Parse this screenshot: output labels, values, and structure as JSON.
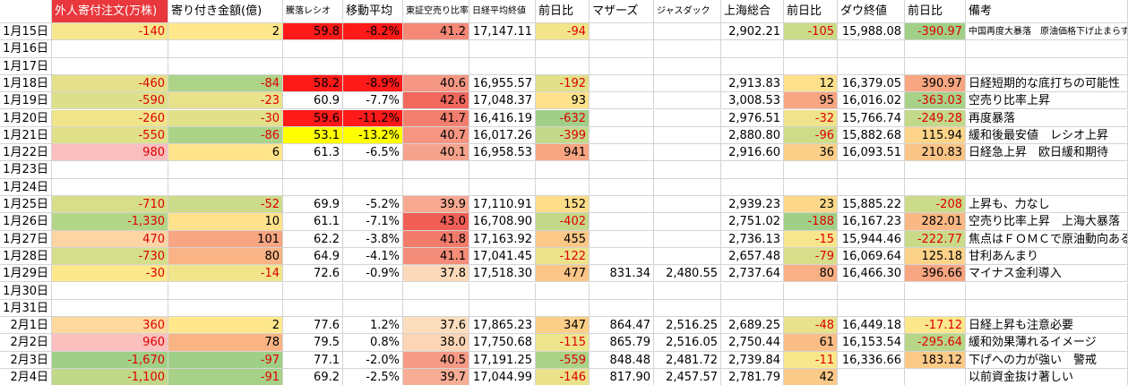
{
  "table": {
    "columns": [
      "外人寄付注文(万株)",
      "寄り付き金額(億)",
      "騰落レシオ",
      "移動平均",
      "東証空売り比率",
      "日経平均終値",
      "前日比",
      "マザーズ",
      "ジャスダック",
      "上海総合",
      "前日比",
      "ダウ終値",
      "前日比",
      "備考"
    ],
    "rows": [
      {
        "date": "1月15日",
        "cells": [
          "-140",
          "2",
          "59.8",
          "-8.2%",
          "41.2",
          "17,147.11",
          "-94",
          null,
          null,
          "2,902.21",
          "-105",
          "15,988.08",
          "-390.97",
          "中国再度大暴落　原油価格下げ止まらず"
        ]
      },
      {
        "date": "1月16日"
      },
      {
        "date": "1月17日"
      },
      {
        "date": "1月18日",
        "cells": [
          "-460",
          "-84",
          "58.2",
          "-8.9%",
          "40.6",
          "16,955.57",
          "-192",
          null,
          null,
          "2,913.83",
          "12",
          "16,379.05",
          "390.97",
          "日経短期的な底打ちの可能性"
        ]
      },
      {
        "date": "1月19日",
        "cells": [
          "-590",
          "-23",
          "60.9",
          "-7.7%",
          "42.6",
          "17,048.37",
          "93",
          null,
          null,
          "3,008.53",
          "95",
          "16,016.02",
          "-363.03",
          "空売り比率上昇"
        ]
      },
      {
        "date": "1月20日",
        "cells": [
          "-260",
          "-30",
          "59.6",
          "-11.2%",
          "41.7",
          "16,416.19",
          "-632",
          null,
          null,
          "2,976.51",
          "-32",
          "15,766.74",
          "-249.28",
          "再度暴落"
        ]
      },
      {
        "date": "1月21日",
        "cells": [
          "-550",
          "-86",
          "53.1",
          "-13.2%",
          "40.7",
          "16,017.26",
          "-399",
          null,
          null,
          "2,880.80",
          "-96",
          "15,882.68",
          "115.94",
          "緩和後最安値　レシオ上昇"
        ]
      },
      {
        "date": "1月22日",
        "cells": [
          "980",
          "6",
          "61.3",
          "-6.5%",
          "40.1",
          "16,958.53",
          "941",
          null,
          null,
          "2,916.60",
          "36",
          "16,093.51",
          "210.83",
          "日経急上昇　欧日緩和期待"
        ]
      },
      {
        "date": "1月23日"
      },
      {
        "date": "1月24日"
      },
      {
        "date": "1月25日",
        "cells": [
          "-710",
          "-52",
          "69.9",
          "-5.2%",
          "39.9",
          "17,110.91",
          "152",
          null,
          null,
          "2,939.23",
          "23",
          "15,885.22",
          "-208",
          "上昇も、力なし"
        ]
      },
      {
        "date": "1月26日",
        "cells": [
          "-1,330",
          "10",
          "61.1",
          "-7.1%",
          "43.0",
          "16,708.90",
          "-402",
          null,
          null,
          "2,751.02",
          "-188",
          "16,167.23",
          "282.01",
          "空売り比率上昇　上海大暴落"
        ]
      },
      {
        "date": "1月27日",
        "cells": [
          "470",
          "101",
          "62.2",
          "-3.8%",
          "41.8",
          "17,163.92",
          "455",
          null,
          null,
          "2,736.13",
          "-15",
          "15,944.46",
          "-222.77",
          "焦点はＦＯＭＣで原油動向あるか"
        ]
      },
      {
        "date": "1月28日",
        "cells": [
          "-730",
          "80",
          "64.9",
          "-4.1%",
          "41.1",
          "17,041.45",
          "-122",
          null,
          null,
          "2,657.48",
          "-79",
          "16,069.64",
          "125.18",
          "甘利あんまり"
        ]
      },
      {
        "date": "1月29日",
        "cells": [
          "-30",
          "-14",
          "72.6",
          "-0.9%",
          "37.8",
          "17,518.30",
          "477",
          "831.34",
          "2,480.55",
          "2,737.64",
          "80",
          "16,466.30",
          "396.66",
          "マイナス金利導入"
        ]
      },
      {
        "date": "1月30日"
      },
      {
        "date": "1月31日"
      },
      {
        "date": "2月1日",
        "cells": [
          "360",
          "2",
          "77.6",
          "1.2%",
          "37.6",
          "17,865.23",
          "347",
          "864.47",
          "2,516.25",
          "2,689.25",
          "-48",
          "16,449.18",
          "-17.12",
          "日経上昇も注意必要"
        ]
      },
      {
        "date": "2月2日",
        "cells": [
          "960",
          "78",
          "79.5",
          "0.8%",
          "38.0",
          "17,750.68",
          "-115",
          "865.79",
          "2,516.05",
          "2,750.44",
          "61",
          "16,153.54",
          "-295.64",
          "緩和効果薄れるイメージ"
        ]
      },
      {
        "date": "2月3日",
        "cells": [
          "-1,670",
          "-97",
          "77.1",
          "-2.0%",
          "40.5",
          "17,191.25",
          "-559",
          "848.48",
          "2,481.72",
          "2,739.84",
          "-11",
          "16,336.66",
          "183.12",
          "下げへの力が強い　警戒"
        ]
      },
      {
        "date": "2月4日",
        "cells": [
          "-1,100",
          "-91",
          "69.2",
          "-2.5%",
          "39.7",
          "17,044.99",
          "-146",
          "817.90",
          "2,457.57",
          "2,781.79",
          "42",
          null,
          null,
          "以前資金抜け著しい"
        ]
      }
    ]
  }
}
